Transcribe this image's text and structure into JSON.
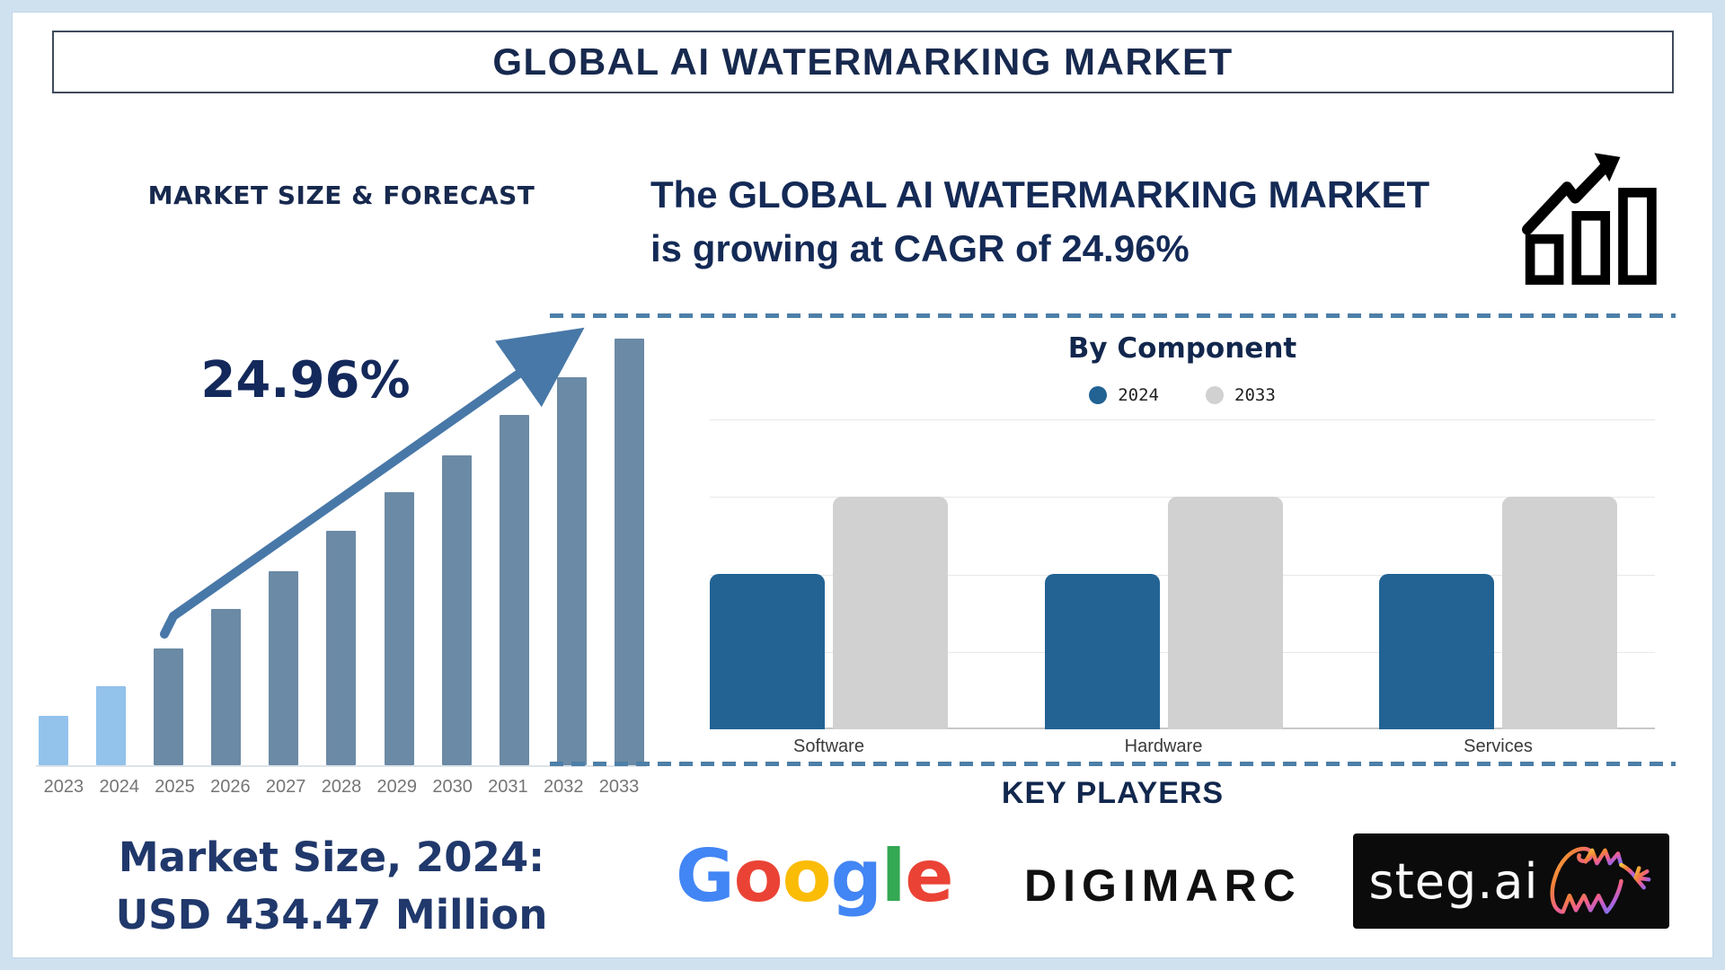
{
  "page": {
    "title": "GLOBAL AI WATERMARKING MARKET"
  },
  "left_panel": {
    "market_size_line1": "Market Size, 2024:",
    "market_size_line2": "USD 434.47 Million"
  },
  "right_panel": {
    "headline_line1": "The GLOBAL AI WATERMARKING MARKET",
    "headline_line2": "is growing at CAGR of 24.96%",
    "growth_icon": "bar-chart-rising-arrow-icon",
    "key_players_title": "KEY PLAYERS",
    "players": [
      {
        "name": "Google",
        "letters": [
          {
            "ch": "G",
            "color": "#4285F4"
          },
          {
            "ch": "o",
            "color": "#EA4335"
          },
          {
            "ch": "o",
            "color": "#FBBC05"
          },
          {
            "ch": "g",
            "color": "#4285F4"
          },
          {
            "ch": "l",
            "color": "#34A853"
          },
          {
            "ch": "e",
            "color": "#EA4335"
          }
        ]
      },
      {
        "name": "DIGIMARC"
      },
      {
        "name": "steg.ai",
        "icon": "stegosaurus-neon-icon"
      }
    ]
  },
  "colors": {
    "navy_text": "#17294e",
    "steel_bar": "#6b8aa5",
    "light_blue_bar": "#93c2eb",
    "trend_arrow": "#4878a8",
    "dashed_divider": "#4d7fa8",
    "component_blue": "#226394",
    "component_gray": "#d1d1d1",
    "frame": "#cfe0ef",
    "year_label": "#757575"
  },
  "chart_data": [
    {
      "type": "bar",
      "title": "MARKET SIZE & FORECAST",
      "categories": [
        "2023",
        "2024",
        "2025",
        "2026",
        "2027",
        "2028",
        "2029",
        "2030",
        "2031",
        "2032",
        "2033"
      ],
      "values_rel": [
        11.6,
        18.5,
        27.4,
        36.6,
        45.5,
        54.9,
        64.0,
        72.6,
        82.1,
        91.0,
        100
      ],
      "values_note": "bar heights in % of tallest bar, estimated from pixels; no value axis shown",
      "bar_colors": [
        "#93c2eb",
        "#93c2eb",
        "#6b8aa5",
        "#6b8aa5",
        "#6b8aa5",
        "#6b8aa5",
        "#6b8aa5",
        "#6b8aa5",
        "#6b8aa5",
        "#6b8aa5",
        "#6b8aa5"
      ],
      "cagr_label": "24.96%",
      "known_point": {
        "year": "2024",
        "value": "USD 434.47 Million"
      },
      "trend_arrow": true,
      "grid": false
    },
    {
      "type": "grouped-bar",
      "title": "By Component",
      "categories": [
        "Software",
        "Hardware",
        "Services"
      ],
      "series": [
        {
          "name": "2024",
          "color": "#226394",
          "values": [
            2,
            2,
            2
          ]
        },
        {
          "name": "2033",
          "color": "#d1d1d1",
          "values": [
            3,
            3,
            3
          ]
        }
      ],
      "ylim": [
        0,
        4
      ],
      "values_note": "relative units estimated from gridlines; axis unlabeled",
      "grid": true,
      "legend_position": "top"
    }
  ]
}
